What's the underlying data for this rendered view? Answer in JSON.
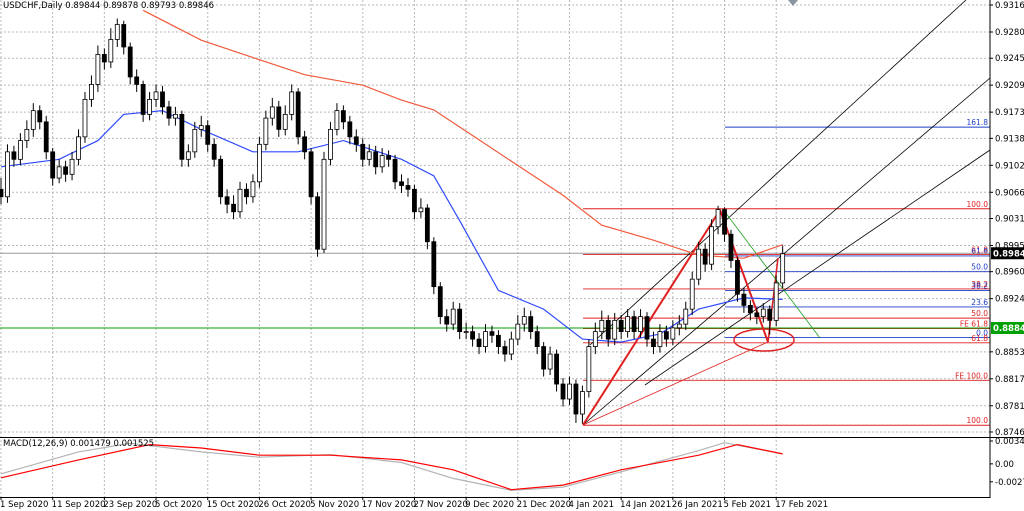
{
  "chart_data": {
    "type": "candlestick",
    "title": "USDCHF,Daily",
    "readout": [
      0.89844,
      0.89878,
      0.89793,
      0.89846
    ],
    "up_color": "#ffffff",
    "down_color": "#000000",
    "categories": [
      "1 Sep 2020",
      null,
      null,
      null,
      null,
      null,
      null,
      null,
      "11 Sep 2020",
      null,
      null,
      null,
      null,
      null,
      null,
      null,
      "23 Sep 2020",
      null,
      null,
      null,
      null,
      null,
      null,
      null,
      "5 Oct 2020",
      null,
      null,
      null,
      null,
      null,
      null,
      null,
      "15 Oct 2020",
      null,
      null,
      null,
      null,
      null,
      null,
      null,
      "26 Oct 2020",
      null,
      null,
      null,
      null,
      null,
      null,
      null,
      "5 Nov 2020",
      null,
      null,
      null,
      null,
      null,
      null,
      null,
      "17 Nov 2020",
      null,
      null,
      null,
      null,
      null,
      null,
      null,
      "27 Nov 2020",
      null,
      null,
      null,
      null,
      null,
      null,
      null,
      "9 Dec 2020",
      null,
      null,
      null,
      null,
      null,
      null,
      null,
      "21 Dec 2020",
      null,
      null,
      null,
      null,
      null,
      null,
      null,
      "4 Jan 2021",
      null,
      null,
      null,
      null,
      null,
      null,
      null,
      "14 Jan 2021",
      null,
      null,
      null,
      null,
      null,
      null,
      null,
      "26 Jan 2021",
      null,
      null,
      null,
      null,
      null,
      null,
      null,
      "5 Feb 2021",
      null,
      null,
      null,
      null,
      null,
      null,
      null,
      "17 Feb 2021",
      null
    ],
    "candles": [
      [
        0.907,
        0.9085,
        0.905,
        0.906
      ],
      [
        0.906,
        0.913,
        0.9052,
        0.912
      ],
      [
        0.912,
        0.9128,
        0.91,
        0.911
      ],
      [
        0.911,
        0.9145,
        0.9102,
        0.9135
      ],
      [
        0.9135,
        0.9162,
        0.9125,
        0.915
      ],
      [
        0.915,
        0.9185,
        0.914,
        0.9175
      ],
      [
        0.9175,
        0.9182,
        0.915,
        0.916
      ],
      [
        0.916,
        0.9168,
        0.911,
        0.912
      ],
      [
        0.912,
        0.9125,
        0.9075,
        0.9085
      ],
      [
        0.9085,
        0.911,
        0.9078,
        0.91
      ],
      [
        0.91,
        0.9108,
        0.908,
        0.909
      ],
      [
        0.909,
        0.912,
        0.9082,
        0.911
      ],
      [
        0.911,
        0.915,
        0.9102,
        0.914
      ],
      [
        0.914,
        0.92,
        0.9132,
        0.919
      ],
      [
        0.919,
        0.9222,
        0.918,
        0.921
      ],
      [
        0.921,
        0.9262,
        0.92,
        0.925
      ],
      [
        0.925,
        0.9258,
        0.923,
        0.924
      ],
      [
        0.924,
        0.9285,
        0.9232,
        0.927
      ],
      [
        0.927,
        0.9298,
        0.926,
        0.929
      ],
      [
        0.929,
        0.9295,
        0.925,
        0.926
      ],
      [
        0.926,
        0.9266,
        0.921,
        0.922
      ],
      [
        0.922,
        0.923,
        0.92,
        0.921
      ],
      [
        0.921,
        0.9215,
        0.916,
        0.917
      ],
      [
        0.917,
        0.92,
        0.9162,
        0.919
      ],
      [
        0.919,
        0.921,
        0.918,
        0.92
      ],
      [
        0.92,
        0.9208,
        0.917,
        0.918
      ],
      [
        0.918,
        0.9188,
        0.9155,
        0.9165
      ],
      [
        0.9165,
        0.918,
        0.9155,
        0.917
      ],
      [
        0.917,
        0.9175,
        0.91,
        0.911
      ],
      [
        0.911,
        0.913,
        0.91,
        0.912
      ],
      [
        0.912,
        0.916,
        0.9112,
        0.915
      ],
      [
        0.915,
        0.9168,
        0.914,
        0.9155
      ],
      [
        0.9155,
        0.9162,
        0.912,
        0.913
      ],
      [
        0.913,
        0.9138,
        0.91,
        0.911
      ],
      [
        0.911,
        0.9115,
        0.905,
        0.906
      ],
      [
        0.906,
        0.907,
        0.9038,
        0.905
      ],
      [
        0.905,
        0.9062,
        0.903,
        0.904
      ],
      [
        0.904,
        0.908,
        0.9032,
        0.907
      ],
      [
        0.907,
        0.9078,
        0.905,
        0.906
      ],
      [
        0.906,
        0.909,
        0.9052,
        0.908
      ],
      [
        0.908,
        0.914,
        0.9072,
        0.913
      ],
      [
        0.913,
        0.9175,
        0.9122,
        0.9165
      ],
      [
        0.9165,
        0.9192,
        0.9155,
        0.918
      ],
      [
        0.918,
        0.9188,
        0.914,
        0.915
      ],
      [
        0.915,
        0.9182,
        0.9142,
        0.917
      ],
      [
        0.917,
        0.921,
        0.9162,
        0.92
      ],
      [
        0.92,
        0.9205,
        0.913,
        0.914
      ],
      [
        0.914,
        0.9148,
        0.911,
        0.912
      ],
      [
        0.912,
        0.9125,
        0.905,
        0.906
      ],
      [
        0.906,
        0.9066,
        0.898,
        0.899
      ],
      [
        0.899,
        0.912,
        0.8985,
        0.911
      ],
      [
        0.911,
        0.916,
        0.9102,
        0.915
      ],
      [
        0.915,
        0.9185,
        0.9142,
        0.9175
      ],
      [
        0.9175,
        0.9182,
        0.915,
        0.916
      ],
      [
        0.916,
        0.9168,
        0.913,
        0.914
      ],
      [
        0.914,
        0.915,
        0.912,
        0.913
      ],
      [
        0.913,
        0.9138,
        0.91,
        0.911
      ],
      [
        0.911,
        0.913,
        0.9102,
        0.912
      ],
      [
        0.912,
        0.9128,
        0.909,
        0.91
      ],
      [
        0.91,
        0.9125,
        0.9092,
        0.9115
      ],
      [
        0.9115,
        0.9122,
        0.91,
        0.911
      ],
      [
        0.911,
        0.9116,
        0.907,
        0.908
      ],
      [
        0.908,
        0.909,
        0.9065,
        0.9075
      ],
      [
        0.9075,
        0.9085,
        0.906,
        0.907
      ],
      [
        0.907,
        0.9076,
        0.903,
        0.904
      ],
      [
        0.904,
        0.9058,
        0.9032,
        0.9045
      ],
      [
        0.9045,
        0.905,
        0.899,
        0.9
      ],
      [
        0.9,
        0.9006,
        0.893,
        0.894
      ],
      [
        0.894,
        0.8946,
        0.889,
        0.89
      ],
      [
        0.89,
        0.891,
        0.888,
        0.889
      ],
      [
        0.889,
        0.892,
        0.8882,
        0.891
      ],
      [
        0.891,
        0.8918,
        0.887,
        0.888
      ],
      [
        0.888,
        0.8892,
        0.887,
        0.888
      ],
      [
        0.888,
        0.8888,
        0.886,
        0.887
      ],
      [
        0.887,
        0.8878,
        0.885,
        0.886
      ],
      [
        0.886,
        0.889,
        0.8852,
        0.888
      ],
      [
        0.888,
        0.8888,
        0.8865,
        0.8875
      ],
      [
        0.8875,
        0.8882,
        0.885,
        0.886
      ],
      [
        0.886,
        0.8868,
        0.884,
        0.885
      ],
      [
        0.885,
        0.888,
        0.8842,
        0.887
      ],
      [
        0.887,
        0.8902,
        0.8862,
        0.889
      ],
      [
        0.889,
        0.8912,
        0.888,
        0.89
      ],
      [
        0.89,
        0.8908,
        0.887,
        0.888
      ],
      [
        0.888,
        0.8888,
        0.885,
        0.886
      ],
      [
        0.886,
        0.8866,
        0.882,
        0.883
      ],
      [
        0.883,
        0.886,
        0.8822,
        0.885
      ],
      [
        0.885,
        0.8856,
        0.88,
        0.881
      ],
      [
        0.881,
        0.8818,
        0.878,
        0.879
      ],
      [
        0.879,
        0.882,
        0.8782,
        0.881
      ],
      [
        0.881,
        0.8816,
        0.8758,
        0.877
      ],
      [
        0.877,
        0.8808,
        0.8757,
        0.88
      ],
      [
        0.88,
        0.887,
        0.8792,
        0.886
      ],
      [
        0.886,
        0.8892,
        0.885,
        0.888
      ],
      [
        0.888,
        0.8908,
        0.887,
        0.8895
      ],
      [
        0.8895,
        0.8902,
        0.886,
        0.887
      ],
      [
        0.887,
        0.8905,
        0.8862,
        0.8895
      ],
      [
        0.8895,
        0.8902,
        0.887,
        0.888
      ],
      [
        0.888,
        0.891,
        0.8872,
        0.89
      ],
      [
        0.89,
        0.8908,
        0.887,
        0.888
      ],
      [
        0.888,
        0.891,
        0.8872,
        0.89
      ],
      [
        0.89,
        0.8906,
        0.886,
        0.887
      ],
      [
        0.887,
        0.888,
        0.885,
        0.886
      ],
      [
        0.886,
        0.889,
        0.8852,
        0.888
      ],
      [
        0.888,
        0.8888,
        0.886,
        0.887
      ],
      [
        0.887,
        0.8895,
        0.8862,
        0.8885
      ],
      [
        0.8885,
        0.8902,
        0.8875,
        0.889
      ],
      [
        0.889,
        0.892,
        0.8882,
        0.891
      ],
      [
        0.891,
        0.896,
        0.8902,
        0.895
      ],
      [
        0.895,
        0.9,
        0.8942,
        0.899
      ],
      [
        0.899,
        0.8998,
        0.896,
        0.897
      ],
      [
        0.897,
        0.903,
        0.8962,
        0.902
      ],
      [
        0.902,
        0.9048,
        0.901,
        0.9043
      ],
      [
        0.9043,
        0.9046,
        0.9,
        0.901
      ],
      [
        0.901,
        0.9016,
        0.8965,
        0.8975
      ],
      [
        0.8975,
        0.898,
        0.892,
        0.893
      ],
      [
        0.893,
        0.8938,
        0.8905,
        0.8915
      ],
      [
        0.8915,
        0.8922,
        0.8895,
        0.8905
      ],
      [
        0.8905,
        0.8912,
        0.889,
        0.89
      ],
      [
        0.89,
        0.8918,
        0.8892,
        0.891
      ],
      [
        0.891,
        0.8915,
        0.8876,
        0.8895
      ],
      [
        0.8895,
        0.8955,
        0.8887,
        0.8945
      ],
      [
        0.8945,
        0.8995,
        0.8938,
        0.8984
      ]
    ],
    "xlim": [
      0,
      153.25
    ],
    "ylim": [
      0.87393,
      0.93227
    ],
    "yticks": [
      {
        "value": 0.9316,
        "label": "0.93160"
      },
      {
        "value": 0.928,
        "label": "0.92800"
      },
      {
        "value": 0.9245,
        "label": "0.92450"
      },
      {
        "value": 0.9209,
        "label": "0.92090"
      },
      {
        "value": 0.9173,
        "label": "0.91730"
      },
      {
        "value": 0.9138,
        "label": "0.91380"
      },
      {
        "value": 0.9102,
        "label": "0.91020"
      },
      {
        "value": 0.9066,
        "label": "0.90660"
      },
      {
        "value": 0.9031,
        "label": "0.90310"
      },
      {
        "value": 0.8995,
        "label": "0.89950"
      },
      {
        "value": 0.896,
        "label": "0.89600"
      },
      {
        "value": 0.8924,
        "label": "0.89240"
      },
      {
        "value": 0.8853,
        "label": "0.88530"
      },
      {
        "value": 0.8817,
        "label": "0.88170"
      },
      {
        "value": 0.8781,
        "label": "0.87810"
      },
      {
        "value": 0.8746,
        "label": "0.87460"
      }
    ],
    "grid": true,
    "moving_averages": [
      {
        "color": "#2f4bff",
        "x": [
          0,
          9,
          15,
          19,
          25,
          31,
          39,
          46,
          53,
          62,
          67,
          71,
          77,
          84,
          90,
          96,
          102,
          108,
          115,
          121
        ],
        "values": [
          0.91,
          0.911,
          0.9135,
          0.917,
          0.9175,
          0.915,
          0.912,
          0.912,
          0.9135,
          0.911,
          0.9088,
          0.9028,
          0.8935,
          0.891,
          0.887,
          0.8866,
          0.8877,
          0.891,
          0.8925,
          0.8923
        ]
      },
      {
        "color": "#f05a3c",
        "x": [
          22,
          31,
          40,
          47,
          56,
          62,
          67,
          74,
          81,
          87,
          93,
          101,
          108,
          115,
          121
        ],
        "values": [
          0.9309,
          0.9269,
          0.9243,
          0.9223,
          0.9209,
          0.9189,
          0.9176,
          0.9136,
          0.9096,
          0.9062,
          0.9022,
          0.9002,
          0.8982,
          0.8978,
          0.8996
        ]
      }
    ],
    "price_lines": [
      {
        "value": 0.89846,
        "color": "#000000"
      },
      {
        "value": 0.88848,
        "color": "#00a000"
      }
    ],
    "fib_levels": [
      {
        "label": "161.8",
        "value": 0.9153,
        "color": "#1f3fc8"
      },
      {
        "label": "100.0",
        "value": 0.9044,
        "color": "#e02020"
      },
      {
        "label": "61.8",
        "value": 0.8983,
        "color": "#e02020"
      },
      {
        "label": "61.8",
        "value": 0.8981,
        "color": "#1f3fc8"
      },
      {
        "label": "50.0",
        "value": 0.896,
        "color": "#1f3fc8"
      },
      {
        "label": "38.2",
        "value": 0.8937,
        "color": "#e02020"
      },
      {
        "label": "38.2",
        "value": 0.8935,
        "color": "#1f3fc8"
      },
      {
        "label": "23.6",
        "value": 0.8913,
        "color": "#1f3fc8"
      },
      {
        "label": "50.0",
        "value": 0.8898,
        "color": "#e02020"
      },
      {
        "label": "FE 61.8",
        "value": 0.8884,
        "color": "#e02020"
      },
      {
        "label": "0.0",
        "value": 0.8872,
        "color": "#1f3fc8"
      },
      {
        "label": "61.8",
        "value": 0.8865,
        "color": "#e02020"
      },
      {
        "label": "FE 100.0",
        "value": 0.8815,
        "color": "#e02020"
      },
      {
        "label": "100.0",
        "value": 0.8755,
        "color": "#e02020"
      }
    ],
    "macd": {
      "title": "MACD(12,26,9)",
      "readout": [
        0.001479,
        0.001525
      ],
      "ylim": [
        -0.005,
        0.0036
      ],
      "yticks": [
        0.003454,
        {
          "value": 0,
          "label": "0.00"
        },
        -0.00271
      ],
      "series": [
        {
          "color": "#b4b4b4",
          "x": [
            0,
            12,
            20,
            31,
            40,
            51,
            62,
            70,
            79,
            87,
            96,
            108,
            112,
            121
          ],
          "values": [
            -0.0015,
            0.0018,
            0.0031,
            0.0018,
            0.001,
            0.0014,
            0.0002,
            -0.0022,
            -0.004,
            -0.0035,
            -0.0012,
            0.002,
            0.0032,
            0.0015
          ]
        },
        {
          "color": "#ff0000",
          "x": [
            0,
            12,
            23,
            31,
            40,
            51,
            62,
            70,
            79,
            87,
            96,
            108,
            114,
            121
          ],
          "values": [
            -0.0021,
            0.0006,
            0.0029,
            0.0024,
            0.0013,
            0.0013,
            0.0006,
            -0.0009,
            -0.0039,
            -0.0032,
            -0.0009,
            0.0013,
            0.0029,
            0.0015
          ]
        }
      ]
    }
  }
}
